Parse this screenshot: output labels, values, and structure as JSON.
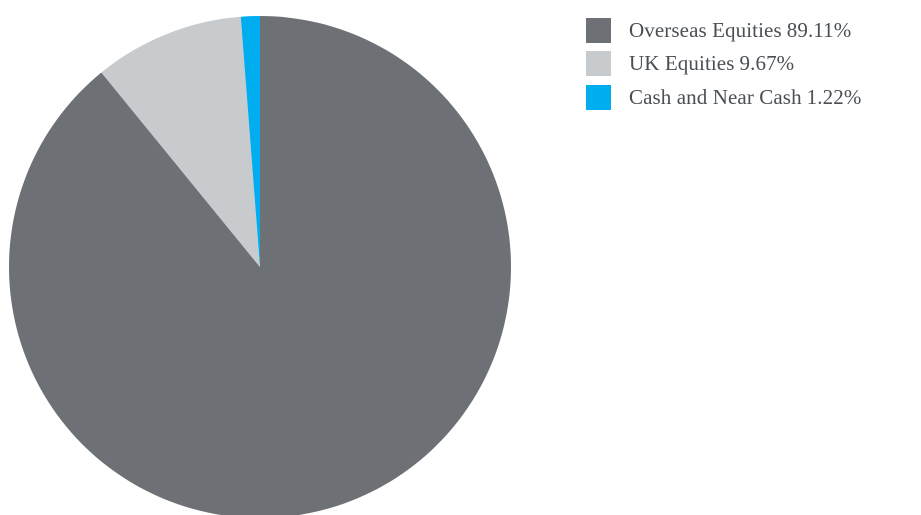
{
  "chart_data": {
    "type": "pie",
    "title": "",
    "start_angle_deg": 0,
    "direction": "clockwise",
    "legend_position": "top-right",
    "slices": [
      {
        "label": "Overseas Equities",
        "value": 89.11,
        "value_label": "89.11%",
        "color": "#6d7175"
      },
      {
        "label": "UK Equities",
        "value": 9.67,
        "value_label": "9.67%",
        "color": "#c8cbce"
      },
      {
        "label": "Cash and Near Cash",
        "value": 1.22,
        "value_label": "1.22%",
        "color": "#00adef"
      }
    ]
  }
}
